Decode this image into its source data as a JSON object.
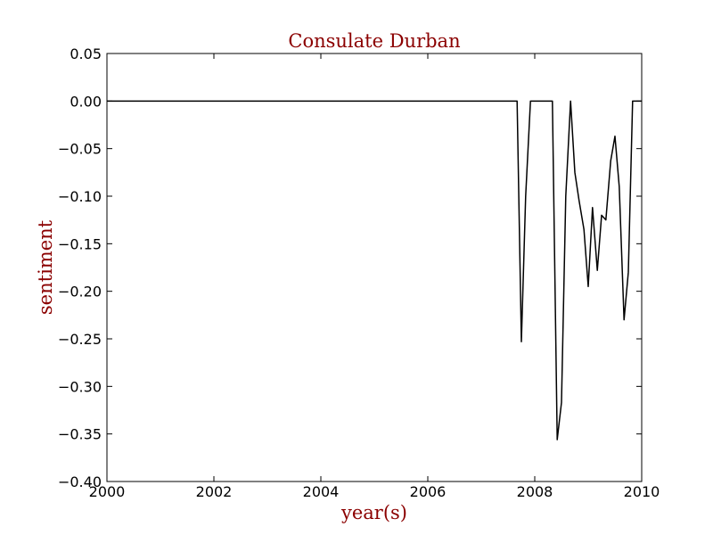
{
  "chart_data": {
    "type": "line",
    "title": "Consulate Durban",
    "xlabel": "year(s)",
    "ylabel": "sentiment",
    "xlim": [
      2000,
      2010
    ],
    "ylim": [
      -0.4,
      0.05
    ],
    "x_ticks": [
      2000,
      2002,
      2004,
      2006,
      2008,
      2010
    ],
    "x_tick_labels": [
      "2000",
      "2002",
      "2004",
      "2006",
      "2008",
      "2010"
    ],
    "y_ticks": [
      0.05,
      0.0,
      -0.05,
      -0.1,
      -0.15,
      -0.2,
      -0.25,
      -0.3,
      -0.35,
      -0.4
    ],
    "y_tick_labels": [
      "0.05",
      "0.00",
      "−0.05",
      "−0.10",
      "−0.15",
      "−0.20",
      "−0.25",
      "−0.30",
      "−0.35",
      "−0.40"
    ],
    "grid": false,
    "colors": {
      "line": "#000000",
      "label_text": "#8b0000"
    },
    "series": [
      {
        "x": [
          2000.0,
          2007.67,
          2007.75,
          2007.83,
          2007.92,
          2008.0,
          2008.08,
          2008.17,
          2008.25,
          2008.33,
          2008.42,
          2008.5,
          2008.58,
          2008.67,
          2008.75,
          2008.83,
          2008.92,
          2009.0,
          2009.08,
          2009.17,
          2009.25,
          2009.33,
          2009.42,
          2009.5,
          2009.58,
          2009.67,
          2009.75,
          2009.83,
          2010.0
        ],
        "y": [
          0.0,
          0.0,
          -0.253,
          -0.1,
          0.0,
          0.0,
          0.0,
          0.0,
          0.0,
          0.0,
          -0.356,
          -0.317,
          -0.1,
          0.0,
          -0.075,
          -0.105,
          -0.135,
          -0.195,
          -0.112,
          -0.178,
          -0.12,
          -0.125,
          -0.063,
          -0.037,
          -0.09,
          -0.23,
          -0.18,
          0.0,
          0.0
        ]
      }
    ]
  }
}
